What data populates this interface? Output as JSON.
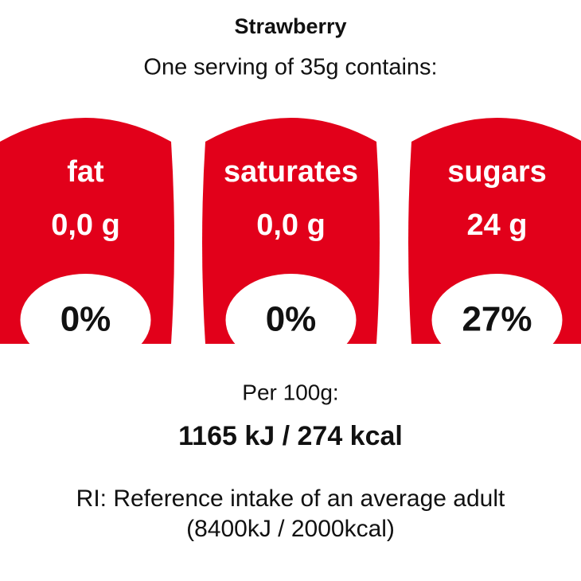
{
  "header": {
    "title": "Strawberry",
    "subtitle": "One serving of 35g contains:"
  },
  "nutrients": [
    {
      "name": "fat",
      "amount": "0,0 g",
      "ri": "0%"
    },
    {
      "name": "saturates",
      "amount": "0,0 g",
      "ri": "0%"
    },
    {
      "name": "sugars",
      "amount": "24 g",
      "ri": "27%"
    }
  ],
  "energy": {
    "label": "Per 100g:",
    "value": "1165 kJ / 274 kcal"
  },
  "footer": {
    "note": "RI: Reference intake of an average adult",
    "reference": "(8400kJ / 2000kcal)"
  }
}
